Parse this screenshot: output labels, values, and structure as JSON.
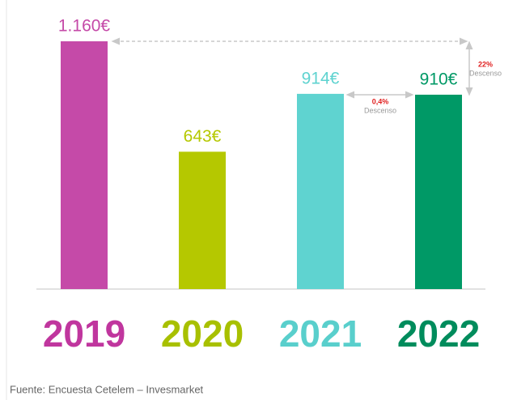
{
  "chart_data": {
    "type": "bar",
    "categories": [
      "2019",
      "2020",
      "2021",
      "2022"
    ],
    "values": [
      1160,
      643,
      914,
      910
    ],
    "value_labels": [
      "1.160€",
      "643€",
      "914€",
      "910€"
    ],
    "colors": [
      "#c54aa8",
      "#b5c800",
      "#5fd3d0",
      "#009966"
    ],
    "label_colors": [
      "#c0369e",
      "#a8c000",
      "#59cfcc",
      "#008c5c"
    ],
    "annotations": [
      {
        "text": "22%",
        "note": "Descenso"
      },
      {
        "text": "0,4%",
        "note": "Descenso"
      }
    ],
    "source": "Fuente: Encuesta Cetelem – Invesmarket"
  }
}
